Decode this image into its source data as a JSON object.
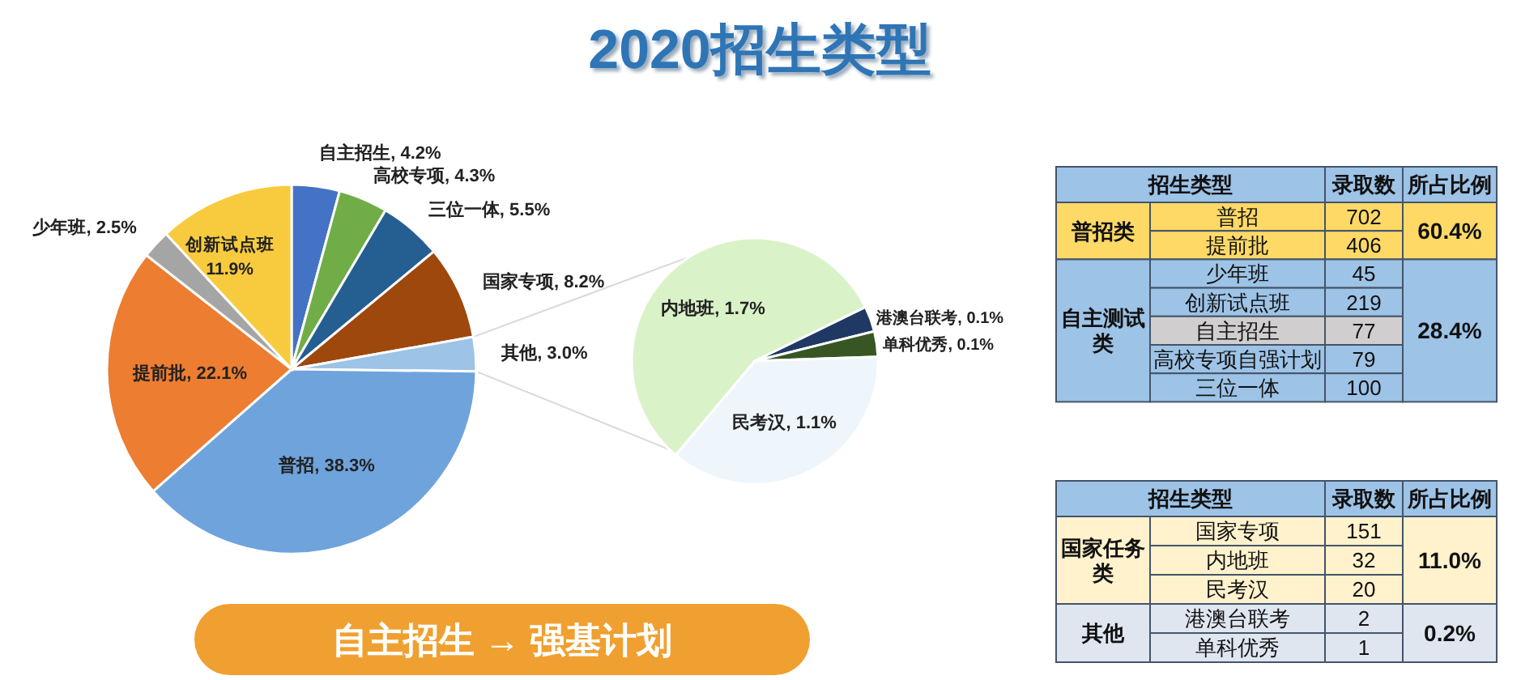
{
  "chart_data": [
    {
      "type": "pie",
      "title": "2020招生类型",
      "categories": [
        "自主招生",
        "高校专项",
        "三位一体",
        "国家专项",
        "其他",
        "普招",
        "提前批",
        "少年班",
        "创新试点班"
      ],
      "values": [
        4.2,
        4.3,
        5.5,
        8.2,
        3.0,
        38.3,
        22.1,
        2.5,
        11.9
      ],
      "value_labels": [
        "4.2%",
        "4.3%",
        "5.5%",
        "8.2%",
        "3.0%",
        "38.3%",
        "22.1%",
        "2.5%",
        "11.9%"
      ],
      "colors": [
        "#4472c4",
        "#70ad47",
        "#255e91",
        "#9e480e",
        "#9dc3e6",
        "#6fa3dc",
        "#ed7d31",
        "#a5a5a5",
        "#f7cb3d"
      ],
      "annotations": [
        "自主招生 → 强基计划"
      ]
    },
    {
      "type": "pie",
      "categories": [
        "内地班",
        "港澳台联考",
        "单科优秀",
        "民考汉"
      ],
      "values": [
        1.7,
        0.1,
        0.1,
        1.1
      ],
      "value_labels": [
        "1.7%",
        "0.1%",
        "0.1%",
        "1.1%"
      ],
      "colors": [
        "#daf2c8",
        "#203864",
        "#375623",
        "#eef6fc"
      ]
    },
    {
      "type": "other",
      "categories": [
        "普招",
        "提前批",
        "少年班",
        "创新试点班",
        "自主招生",
        "高校专项自强计划",
        "三位一体"
      ],
      "values": [
        702,
        406,
        45,
        219,
        77,
        79,
        100
      ],
      "data_labels": true,
      "colors": [
        "#ffd966",
        "#ffd966",
        "#9dc3e6",
        "#9dc3e6",
        "#d0cece",
        "#9dc3e6",
        "#9dc3e6"
      ],
      "annotations": [
        "招生类型",
        "录取数",
        "所占比例",
        "普招类",
        "60.4%",
        "自主测试类",
        "28.4%"
      ]
    },
    {
      "type": "other",
      "categories": [
        "国家专项",
        "内地班",
        "民考汉",
        "港澳台联考",
        "单科优秀"
      ],
      "values": [
        151,
        32,
        20,
        2,
        1
      ],
      "data_labels": true,
      "colors": [
        "#fff2cc",
        "#fff2cc",
        "#fff2cc",
        "#dfe6f0",
        "#dfe6f0"
      ],
      "annotations": [
        "招生类型",
        "录取数",
        "所占比例",
        "国家任务类",
        "11.0%",
        "其他",
        "0.2%"
      ]
    }
  ]
}
